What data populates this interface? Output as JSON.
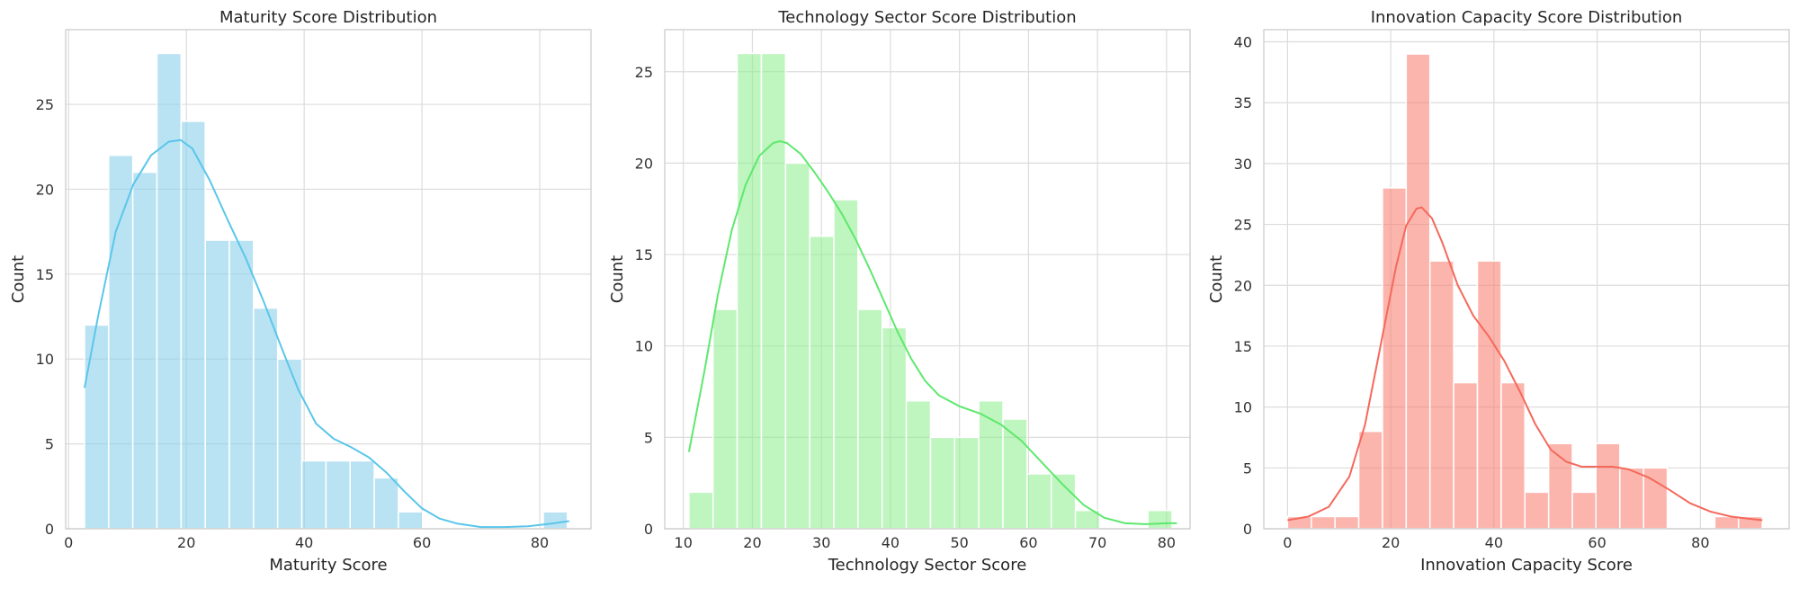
{
  "chart_data": [
    {
      "type": "histogram",
      "title": "Maturity Score Distribution",
      "xlabel": "Maturity Score",
      "ylabel": "Count",
      "xlim": [
        -0.5,
        88.7
      ],
      "ylim": [
        0,
        29.4
      ],
      "xticks": [
        0,
        20,
        40,
        60,
        80
      ],
      "yticks": [
        0,
        5,
        10,
        15,
        20,
        25
      ],
      "grid": true,
      "bar_color": "#87ceeb",
      "kde_color": "#5bc6ea",
      "bin_edges": [
        2.7,
        6.8,
        10.9,
        15.0,
        19.1,
        23.2,
        27.3,
        31.4,
        35.5,
        39.6,
        43.7,
        47.8,
        51.9,
        56.0,
        60.1,
        64.2,
        68.3,
        72.4,
        76.5,
        80.6,
        84.7
      ],
      "counts": [
        12,
        22,
        21,
        28,
        24,
        17,
        17,
        13,
        10,
        4,
        4,
        4,
        3,
        1,
        0,
        0,
        0,
        0,
        0,
        1
      ],
      "kde": {
        "x": [
          2.7,
          5,
          8,
          11,
          14,
          17,
          19,
          21,
          24,
          27,
          30,
          33,
          36,
          39,
          42,
          45,
          48,
          51,
          54,
          57,
          60,
          63,
          66,
          70,
          74,
          78,
          82,
          85
        ],
        "y": [
          8.3,
          12.5,
          17.5,
          20.3,
          22,
          22.8,
          22.9,
          22.4,
          20.5,
          18.2,
          16,
          13.5,
          10.8,
          8.2,
          6.2,
          5.3,
          4.8,
          4.2,
          3.3,
          2.2,
          1.2,
          0.6,
          0.3,
          0.1,
          0.1,
          0.15,
          0.3,
          0.45
        ]
      }
    },
    {
      "type": "histogram",
      "title": "Technology Sector Score Distribution",
      "xlabel": "Technology Sector Score",
      "ylabel": "Count",
      "xlim": [
        7.3,
        83.4
      ],
      "ylim": [
        0,
        27.3
      ],
      "xticks": [
        10,
        20,
        30,
        40,
        50,
        60,
        70,
        80
      ],
      "yticks": [
        0,
        5,
        10,
        15,
        20,
        25
      ],
      "grid": true,
      "bar_color": "#90ee90",
      "kde_color": "#5ee86e",
      "bin_edges": [
        10.8,
        14.3,
        17.8,
        21.3,
        24.8,
        28.3,
        31.8,
        35.3,
        38.8,
        42.3,
        45.8,
        49.3,
        52.8,
        56.3,
        59.8,
        63.3,
        66.8,
        70.3,
        73.8,
        77.3,
        80.8
      ],
      "counts": [
        2,
        12,
        26,
        26,
        20,
        16,
        18,
        12,
        11,
        7,
        5,
        5,
        7,
        6,
        3,
        3,
        1,
        0,
        0,
        1
      ],
      "kde": {
        "x": [
          10.8,
          13,
          15,
          17,
          19,
          21,
          23,
          24,
          25,
          27,
          29,
          31,
          33,
          35,
          37,
          39,
          41,
          43,
          45,
          47,
          50,
          53,
          56,
          59,
          62,
          65,
          68,
          71,
          74,
          77,
          80,
          81.5
        ],
        "y": [
          4.2,
          8.5,
          12.8,
          16.3,
          18.8,
          20.4,
          21.1,
          21.2,
          21.1,
          20.5,
          19.5,
          18.4,
          17.2,
          15.8,
          14.2,
          12.5,
          10.8,
          9.3,
          8.1,
          7.3,
          6.7,
          6.3,
          5.7,
          4.8,
          3.6,
          2.4,
          1.3,
          0.6,
          0.3,
          0.25,
          0.3,
          0.3
        ]
      }
    },
    {
      "type": "histogram",
      "title": "Innovation Capacity Score Distribution",
      "xlabel": "Innovation Capacity Score",
      "ylabel": "Count",
      "xlim": [
        -4.6,
        97.2
      ],
      "ylim": [
        0,
        41
      ],
      "xticks": [
        0,
        20,
        40,
        60,
        80
      ],
      "yticks": [
        0,
        5,
        10,
        15,
        20,
        25,
        30,
        35,
        40
      ],
      "grid": true,
      "bar_color": "#fa8072",
      "kde_color": "#f4695c",
      "bin_edges": [
        0.0,
        4.6,
        9.2,
        13.8,
        18.4,
        23.0,
        27.6,
        32.2,
        36.8,
        41.4,
        46.0,
        50.6,
        55.2,
        59.8,
        64.4,
        69.0,
        73.6,
        78.2,
        82.8,
        87.4,
        92.0
      ],
      "counts": [
        1,
        1,
        1,
        8,
        28,
        39,
        22,
        12,
        22,
        12,
        3,
        7,
        3,
        7,
        5,
        5,
        0,
        0,
        1,
        1
      ],
      "kde": {
        "x": [
          0,
          4,
          8,
          12,
          15,
          18,
          21,
          23,
          25,
          26,
          28,
          30,
          33,
          36,
          39,
          42,
          45,
          48,
          51,
          54,
          57,
          60,
          63,
          66,
          70,
          74,
          78,
          82,
          86,
          90,
          92
        ],
        "y": [
          0.7,
          1,
          1.8,
          4.3,
          8.5,
          15,
          21.5,
          24.9,
          26.3,
          26.4,
          25.5,
          23.5,
          20,
          17.5,
          15.8,
          13.8,
          11.3,
          8.6,
          6.5,
          5.5,
          5.1,
          5.1,
          5.1,
          4.9,
          4.2,
          3.2,
          2.1,
          1.4,
          1.0,
          0.8,
          0.7
        ]
      }
    }
  ]
}
